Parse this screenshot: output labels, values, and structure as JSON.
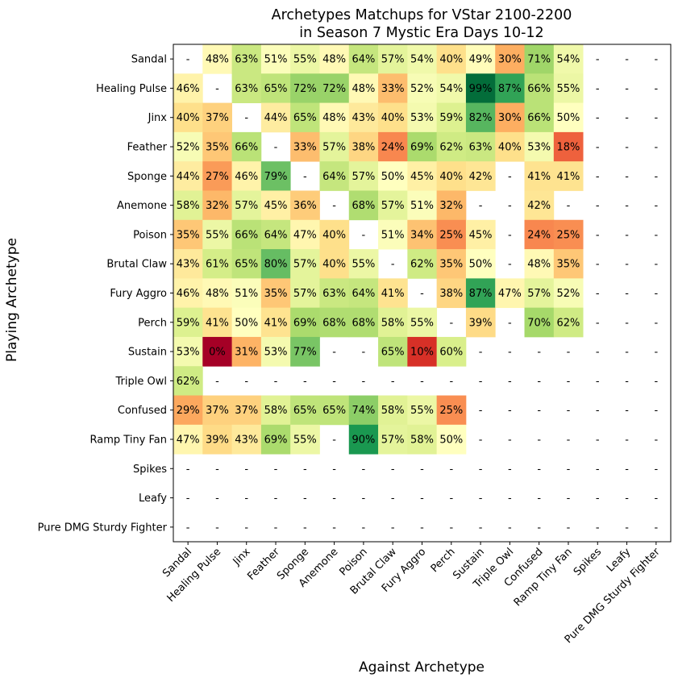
{
  "chart_data": {
    "type": "heatmap",
    "title": [
      "Archetypes Matchups for VStar 2100-2200",
      "in Season 7 Mystic Era Days 10-12"
    ],
    "xlabel": "Against Archetype",
    "ylabel": "Playing Archetype",
    "columns": [
      "Sandal",
      "Healing Pulse",
      "Jinx",
      "Feather",
      "Sponge",
      "Anemone",
      "Poison",
      "Brutal Claw",
      "Fury Aggro",
      "Perch",
      "Sustain",
      "Triple Owl",
      "Confused",
      "Ramp Tiny Fan",
      "Spikes",
      "Leafy",
      "Pure DMG Sturdy Fighter"
    ],
    "rows": [
      "Sandal",
      "Healing Pulse",
      "Jinx",
      "Feather",
      "Sponge",
      "Anemone",
      "Poison",
      "Brutal Claw",
      "Fury Aggro",
      "Perch",
      "Sustain",
      "Triple Owl",
      "Confused",
      "Ramp Tiny Fan",
      "Spikes",
      "Leafy",
      "Pure DMG Sturdy Fighter"
    ],
    "colormap": "RdYlGn",
    "value_range": [
      0,
      100
    ],
    "missing_label": "-",
    "values": [
      [
        null,
        48,
        63,
        51,
        55,
        48,
        64,
        57,
        54,
        40,
        49,
        30,
        71,
        54,
        null,
        null,
        null
      ],
      [
        46,
        null,
        63,
        65,
        72,
        72,
        48,
        33,
        52,
        54,
        99,
        87,
        66,
        55,
        null,
        null,
        null
      ],
      [
        40,
        37,
        null,
        44,
        65,
        48,
        43,
        40,
        53,
        59,
        82,
        30,
        66,
        50,
        null,
        null,
        null
      ],
      [
        52,
        35,
        66,
        null,
        33,
        57,
        38,
        24,
        69,
        62,
        63,
        40,
        53,
        18,
        null,
        null,
        null
      ],
      [
        44,
        27,
        46,
        79,
        null,
        64,
        57,
        50,
        45,
        40,
        42,
        null,
        41,
        41,
        null,
        null,
        null
      ],
      [
        58,
        32,
        57,
        45,
        36,
        null,
        68,
        57,
        51,
        32,
        null,
        null,
        42,
        null,
        null,
        null,
        null
      ],
      [
        35,
        55,
        66,
        64,
        47,
        40,
        null,
        51,
        34,
        25,
        45,
        null,
        24,
        25,
        null,
        null,
        null
      ],
      [
        43,
        61,
        65,
        80,
        57,
        40,
        55,
        null,
        62,
        35,
        50,
        null,
        48,
        35,
        null,
        null,
        null
      ],
      [
        46,
        48,
        51,
        35,
        57,
        63,
        64,
        41,
        null,
        38,
        87,
        47,
        57,
        52,
        null,
        null,
        null
      ],
      [
        59,
        41,
        50,
        41,
        69,
        68,
        68,
        58,
        55,
        null,
        39,
        null,
        70,
        62,
        null,
        null,
        null
      ],
      [
        53,
        0,
        31,
        53,
        77,
        null,
        null,
        65,
        10,
        60,
        null,
        null,
        null,
        null,
        null,
        null,
        null
      ],
      [
        62,
        null,
        null,
        null,
        null,
        null,
        null,
        null,
        null,
        null,
        null,
        null,
        null,
        null,
        null,
        null,
        null
      ],
      [
        29,
        37,
        37,
        58,
        65,
        65,
        74,
        58,
        55,
        25,
        null,
        null,
        null,
        null,
        null,
        null,
        null
      ],
      [
        47,
        39,
        43,
        69,
        55,
        null,
        90,
        57,
        58,
        50,
        null,
        null,
        null,
        null,
        null,
        null,
        null
      ],
      [
        null,
        null,
        null,
        null,
        null,
        null,
        null,
        null,
        null,
        null,
        null,
        null,
        null,
        null,
        null,
        null,
        null
      ],
      [
        null,
        null,
        null,
        null,
        null,
        null,
        null,
        null,
        null,
        null,
        null,
        null,
        null,
        null,
        null,
        null,
        null
      ],
      [
        null,
        null,
        null,
        null,
        null,
        null,
        null,
        null,
        null,
        null,
        null,
        null,
        null,
        null,
        null,
        null,
        null
      ]
    ],
    "shaded": [
      [
        false,
        true,
        true,
        true,
        true,
        true,
        true,
        true,
        true,
        true,
        true,
        true,
        true,
        true,
        false,
        false,
        false
      ],
      [
        true,
        false,
        true,
        true,
        true,
        true,
        true,
        true,
        true,
        true,
        true,
        true,
        true,
        true,
        false,
        false,
        false
      ],
      [
        true,
        true,
        false,
        true,
        true,
        true,
        true,
        true,
        true,
        true,
        true,
        true,
        true,
        true,
        false,
        false,
        false
      ],
      [
        true,
        true,
        true,
        false,
        true,
        true,
        true,
        true,
        true,
        true,
        true,
        true,
        true,
        true,
        false,
        false,
        false
      ],
      [
        true,
        true,
        true,
        true,
        false,
        true,
        true,
        true,
        true,
        true,
        true,
        false,
        true,
        true,
        false,
        false,
        false
      ],
      [
        true,
        true,
        true,
        true,
        true,
        false,
        true,
        true,
        true,
        true,
        false,
        false,
        true,
        false,
        false,
        false,
        false
      ],
      [
        true,
        true,
        true,
        true,
        true,
        true,
        false,
        true,
        true,
        true,
        true,
        false,
        true,
        true,
        false,
        false,
        false
      ],
      [
        true,
        true,
        true,
        true,
        true,
        true,
        true,
        false,
        true,
        true,
        true,
        false,
        true,
        true,
        false,
        false,
        false
      ],
      [
        true,
        true,
        true,
        true,
        true,
        true,
        true,
        true,
        false,
        true,
        true,
        true,
        true,
        true,
        false,
        false,
        false
      ],
      [
        true,
        true,
        true,
        true,
        true,
        true,
        true,
        true,
        true,
        false,
        true,
        false,
        true,
        true,
        false,
        false,
        false
      ],
      [
        true,
        true,
        true,
        true,
        true,
        false,
        false,
        true,
        true,
        true,
        false,
        false,
        false,
        false,
        false,
        false,
        false
      ],
      [
        true,
        false,
        false,
        false,
        false,
        false,
        false,
        false,
        false,
        false,
        false,
        false,
        false,
        false,
        false,
        false,
        false
      ],
      [
        true,
        true,
        true,
        true,
        true,
        true,
        true,
        true,
        true,
        true,
        false,
        false,
        false,
        false,
        false,
        false,
        false
      ],
      [
        true,
        true,
        true,
        true,
        true,
        false,
        true,
        true,
        true,
        true,
        false,
        false,
        false,
        false,
        false,
        false,
        false
      ],
      [
        false,
        false,
        false,
        false,
        false,
        false,
        false,
        false,
        false,
        false,
        false,
        false,
        false,
        false,
        false,
        false,
        false
      ],
      [
        false,
        false,
        false,
        false,
        false,
        false,
        false,
        false,
        false,
        false,
        false,
        false,
        false,
        false,
        false,
        false,
        false
      ],
      [
        false,
        false,
        false,
        false,
        false,
        false,
        false,
        false,
        false,
        false,
        false,
        false,
        false,
        false,
        false,
        false,
        false
      ]
    ],
    "labels": [
      [
        "-",
        "48%",
        "63%",
        "51%",
        "55%",
        "48%",
        "64%",
        "57%",
        "54%",
        "40%",
        "49%",
        "30%",
        "71%",
        "54%",
        "-",
        "-",
        "-"
      ],
      [
        "46%",
        "-",
        "63%",
        "65%",
        "72%",
        "72%",
        "48%",
        "33%",
        "52%",
        "54%",
        "99%",
        "87%",
        "66%",
        "55%",
        "-",
        "-",
        "-"
      ],
      [
        "40%",
        "37%",
        "-",
        "44%",
        "65%",
        "48%",
        "43%",
        "40%",
        "53%",
        "59%",
        "82%",
        "30%",
        "66%",
        "50%",
        "-",
        "-",
        "-"
      ],
      [
        "52%",
        "35%",
        "66%",
        "-",
        "33%",
        "57%",
        "38%",
        "24%",
        "69%",
        "62%",
        "63%",
        "40%",
        "53%",
        "18%",
        "-",
        "-",
        "-"
      ],
      [
        "44%",
        "27%",
        "46%",
        "79%",
        "-",
        "64%",
        "57%",
        "50%",
        "45%",
        "40%",
        "42%",
        "-",
        "41%",
        "41%",
        "-",
        "-",
        "-"
      ],
      [
        "58%",
        "32%",
        "57%",
        "45%",
        "36%",
        "-",
        "68%",
        "57%",
        "51%",
        "32%",
        "-",
        "-",
        "42%",
        "-",
        "-",
        "-",
        "-"
      ],
      [
        "35%",
        "55%",
        "66%",
        "64%",
        "47%",
        "40%",
        "-",
        "51%",
        "34%",
        "25%",
        "45%",
        "-",
        "24%",
        "25%",
        "-",
        "-",
        "-"
      ],
      [
        "43%",
        "61%",
        "65%",
        "80%",
        "57%",
        "40%",
        "55%",
        "-",
        "62%",
        "35%",
        "50%",
        "-",
        "48%",
        "35%",
        "-",
        "-",
        "-"
      ],
      [
        "46%",
        "48%",
        "51%",
        "35%",
        "57%",
        "63%",
        "64%",
        "41%",
        "-",
        "38%",
        "87%",
        "47%",
        "57%",
        "52%",
        "-",
        "-",
        "-"
      ],
      [
        "59%",
        "41%",
        "50%",
        "41%",
        "69%",
        "68%",
        "68%",
        "58%",
        "55%",
        "-",
        "39%",
        "-",
        "70%",
        "62%",
        "-",
        "-",
        "-"
      ],
      [
        "53%",
        "0%",
        "31%",
        "53%",
        "77%",
        "-",
        "-",
        "65%",
        "10%",
        "60%",
        "-",
        "-",
        "-",
        "-",
        "-",
        "-",
        "-"
      ],
      [
        "62%",
        "-",
        "-",
        "-",
        "-",
        "-",
        "-",
        "-",
        "-",
        "-",
        "-",
        "-",
        "-",
        "-",
        "-",
        "-",
        "-"
      ],
      [
        "29%",
        "37%",
        "37%",
        "58%",
        "65%",
        "65%",
        "74%",
        "58%",
        "55%",
        "25%",
        "-",
        "-",
        "-",
        "-",
        "-",
        "-",
        "-"
      ],
      [
        "47%",
        "39%",
        "43%",
        "69%",
        "55%",
        "-",
        "90%",
        "57%",
        "58%",
        "50%",
        "-",
        "-",
        "-",
        "-",
        "-",
        "-",
        "-"
      ],
      [
        "-",
        "-",
        "-",
        "-",
        "-",
        "-",
        "-",
        "-",
        "-",
        "-",
        "-",
        "-",
        "-",
        "-",
        "-",
        "-",
        "-"
      ],
      [
        "-",
        "-",
        "-",
        "-",
        "-",
        "-",
        "-",
        "-",
        "-",
        "-",
        "-",
        "-",
        "-",
        "-",
        "-",
        "-",
        "-"
      ],
      [
        "-",
        "-",
        "-",
        "-",
        "-",
        "-",
        "-",
        "-",
        "-",
        "-",
        "-",
        "-",
        "-",
        "-",
        "-",
        "-",
        "-"
      ]
    ]
  }
}
